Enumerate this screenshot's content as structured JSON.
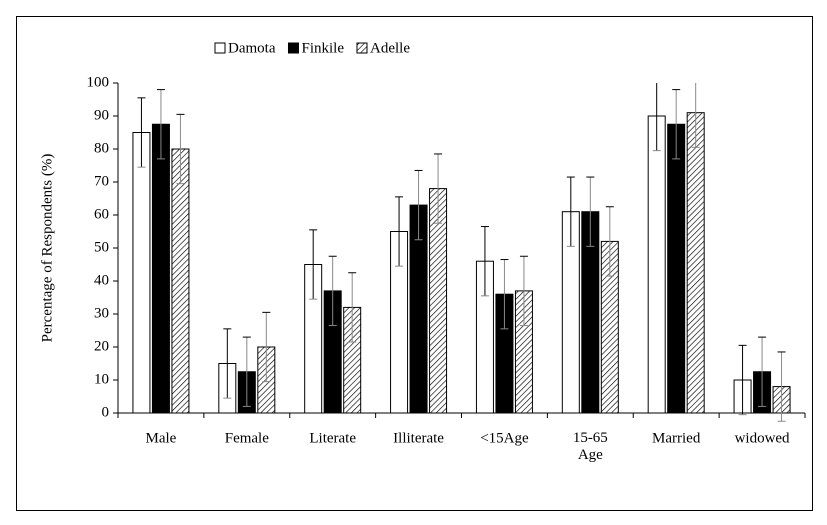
{
  "chart_data": {
    "type": "bar",
    "y_label": "Percentage of Respondents (%)",
    "categories": [
      "Male",
      "Female",
      "Literate",
      "Illiterate",
      "<15Age",
      "15-65 Age",
      "Married",
      "widowed"
    ],
    "series": [
      {
        "name": "Damota",
        "color": "#ffffff",
        "values": [
          85,
          15,
          45,
          55,
          46,
          61,
          90,
          10
        ],
        "errors": [
          10.5,
          10.5,
          10.5,
          10.5,
          10.5,
          10.5,
          10.5,
          10.5
        ]
      },
      {
        "name": "Finkile",
        "color": "#000000",
        "values": [
          87.5,
          12.5,
          37,
          63,
          36,
          61,
          87.5,
          12.5
        ],
        "errors": [
          10.5,
          10.5,
          10.5,
          10.5,
          10.5,
          10.5,
          10.5,
          10.5
        ]
      },
      {
        "name": "Adelle",
        "color": "#000000",
        "pattern": "hatch",
        "values": [
          80,
          20,
          32,
          68,
          37,
          52,
          91,
          8
        ],
        "errors": [
          10.5,
          10.5,
          10.5,
          10.5,
          10.5,
          10.5,
          10.5,
          10.5
        ]
      }
    ],
    "ylim": [
      0,
      100
    ],
    "yticks": [
      0,
      10,
      20,
      30,
      40,
      50,
      60,
      70,
      80,
      90,
      100
    ],
    "legend": "top"
  }
}
